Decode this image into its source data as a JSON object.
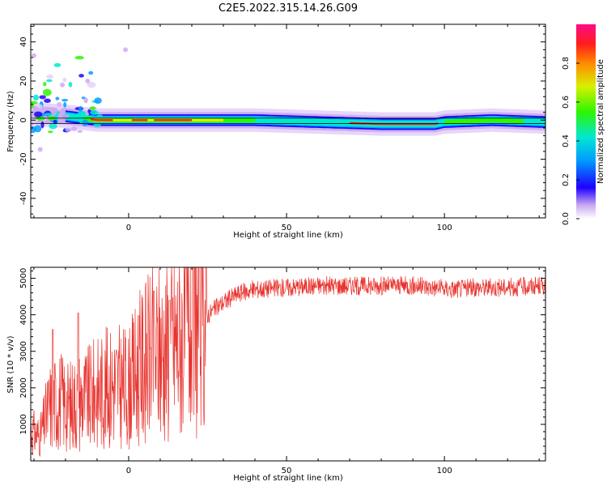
{
  "title": "C2E5.2022.315.14.26.G09",
  "chart_data": [
    {
      "type": "heatmap",
      "xlabel": "Height of straight line (km)",
      "ylabel": "Frequency (Hz)",
      "xlim": [
        -31,
        132
      ],
      "ylim": [
        -50,
        49
      ],
      "xticks": [
        0,
        50,
        100
      ],
      "yticks": [
        -40,
        -20,
        0,
        20,
        40
      ],
      "colorbar": {
        "label": "Normalized spectral amplitude",
        "range": [
          0,
          1
        ],
        "ticks": [
          "0.0",
          "0.2",
          "0.4",
          "0.6",
          "0.8"
        ]
      },
      "ridge": [
        {
          "x": -30,
          "y": 3
        },
        {
          "x": -20,
          "y": 2
        },
        {
          "x": -10,
          "y": 0
        },
        {
          "x": 0,
          "y": 0
        },
        {
          "x": 20,
          "y": 0
        },
        {
          "x": 40,
          "y": 0
        },
        {
          "x": 60,
          "y": -1
        },
        {
          "x": 80,
          "y": -2
        },
        {
          "x": 97,
          "y": -2
        },
        {
          "x": 100,
          "y": -1
        },
        {
          "x": 115,
          "y": 0
        },
        {
          "x": 132,
          "y": -1
        }
      ],
      "reference_line_y": 0
    },
    {
      "type": "line",
      "xlabel": "Height of straight line (km)",
      "ylabel": "SNR (10 * v/v)",
      "xlim": [
        -31,
        132
      ],
      "ylim": [
        0,
        5300
      ],
      "xticks": [
        0,
        50,
        100
      ],
      "yticks": [
        1000,
        2000,
        3000,
        4000,
        5000
      ],
      "color": "#e8342f",
      "envelope": [
        {
          "x": -31,
          "y": 800
        },
        {
          "x": -28,
          "y": 700
        },
        {
          "x": -25,
          "y": 1500
        },
        {
          "x": -22,
          "y": 1700
        },
        {
          "x": -19,
          "y": 1500
        },
        {
          "x": -16,
          "y": 1700
        },
        {
          "x": -13,
          "y": 1700
        },
        {
          "x": -10,
          "y": 1900
        },
        {
          "x": -5,
          "y": 2100
        },
        {
          "x": 0,
          "y": 2000
        },
        {
          "x": 3,
          "y": 2500
        },
        {
          "x": 6,
          "y": 2800
        },
        {
          "x": 10,
          "y": 3000
        },
        {
          "x": 15,
          "y": 3300
        },
        {
          "x": 20,
          "y": 3700
        },
        {
          "x": 25,
          "y": 4000
        },
        {
          "x": 30,
          "y": 4350
        },
        {
          "x": 35,
          "y": 4600
        },
        {
          "x": 40,
          "y": 4700
        },
        {
          "x": 50,
          "y": 4750
        },
        {
          "x": 60,
          "y": 4800
        },
        {
          "x": 70,
          "y": 4800
        },
        {
          "x": 80,
          "y": 4800
        },
        {
          "x": 90,
          "y": 4800
        },
        {
          "x": 97,
          "y": 4750
        },
        {
          "x": 102,
          "y": 4700
        },
        {
          "x": 110,
          "y": 4750
        },
        {
          "x": 120,
          "y": 4750
        },
        {
          "x": 132,
          "y": 4800
        }
      ],
      "peaks": [
        {
          "x": -24,
          "y": 3600
        },
        {
          "x": -16,
          "y": 4050
        },
        {
          "x": 8,
          "y": 4650
        },
        {
          "x": 13,
          "y": 4400
        }
      ]
    }
  ]
}
